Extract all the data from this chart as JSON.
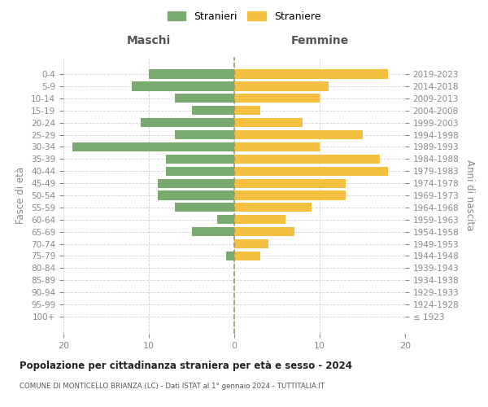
{
  "age_groups": [
    "100+",
    "95-99",
    "90-94",
    "85-89",
    "80-84",
    "75-79",
    "70-74",
    "65-69",
    "60-64",
    "55-59",
    "50-54",
    "45-49",
    "40-44",
    "35-39",
    "30-34",
    "25-29",
    "20-24",
    "15-19",
    "10-14",
    "5-9",
    "0-4"
  ],
  "birth_years": [
    "≤ 1923",
    "1924-1928",
    "1929-1933",
    "1934-1938",
    "1939-1943",
    "1944-1948",
    "1949-1953",
    "1954-1958",
    "1959-1963",
    "1964-1968",
    "1969-1973",
    "1974-1978",
    "1979-1983",
    "1984-1988",
    "1989-1993",
    "1994-1998",
    "1999-2003",
    "2004-2008",
    "2009-2013",
    "2014-2018",
    "2019-2023"
  ],
  "maschi": [
    0,
    0,
    0,
    0,
    0,
    1,
    0,
    5,
    2,
    7,
    9,
    9,
    8,
    8,
    19,
    7,
    11,
    5,
    7,
    12,
    10
  ],
  "femmine": [
    0,
    0,
    0,
    0,
    0,
    3,
    4,
    7,
    6,
    9,
    13,
    13,
    18,
    17,
    10,
    15,
    8,
    3,
    10,
    11,
    18
  ],
  "color_maschi": "#7aab6e",
  "color_femmine": "#f5c040",
  "xlim": 20,
  "title": "Popolazione per cittadinanza straniera per età e sesso - 2024",
  "subtitle": "COMUNE DI MONTICELLO BRIANZA (LC) - Dati ISTAT al 1° gennaio 2024 - TUTTITALIA.IT",
  "ylabel_left": "Fasce di età",
  "ylabel_right": "Anni di nascita",
  "header_left": "Maschi",
  "header_right": "Femmine",
  "legend_maschi": "Stranieri",
  "legend_femmine": "Straniere",
  "bg_color": "#ffffff",
  "grid_color": "#d0d0d0",
  "tick_color": "#888888"
}
